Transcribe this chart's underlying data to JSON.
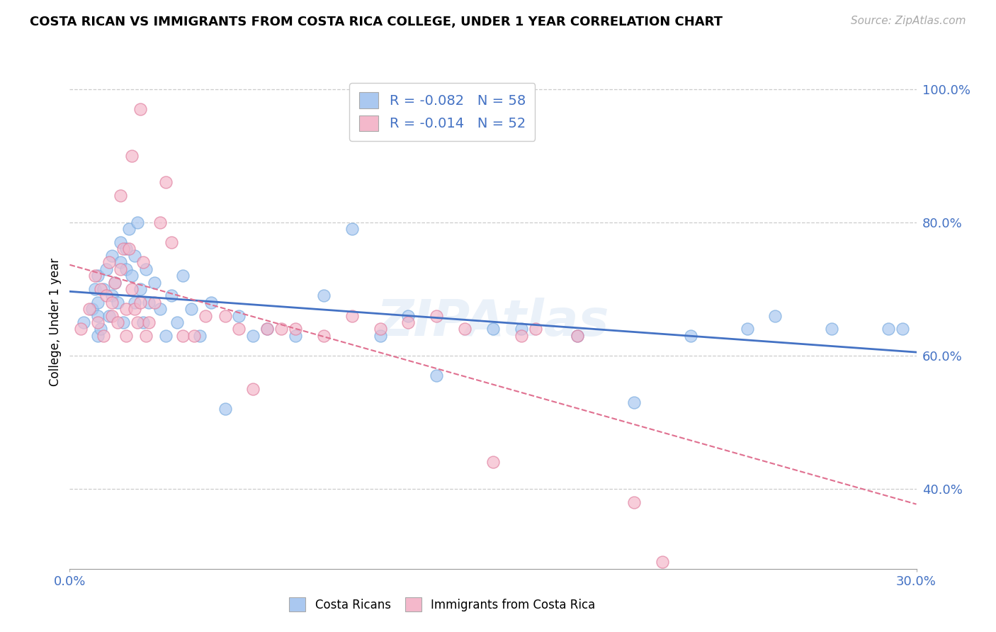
{
  "title": "COSTA RICAN VS IMMIGRANTS FROM COSTA RICA COLLEGE, UNDER 1 YEAR CORRELATION CHART",
  "source": "Source: ZipAtlas.com",
  "ylabel": "College, Under 1 year",
  "xlim": [
    0.0,
    0.3
  ],
  "ylim": [
    0.28,
    1.02
  ],
  "yticks": [
    0.4,
    0.6,
    0.8,
    1.0
  ],
  "ytick_labels": [
    "40.0%",
    "60.0%",
    "80.0%",
    "100.0%"
  ],
  "series1_name": "Costa Ricans",
  "series1_color": "#aac8f0",
  "series1_edge_color": "#7aacdf",
  "series1_line_color": "#4472c4",
  "series1_R": -0.082,
  "series1_N": 58,
  "series2_name": "Immigrants from Costa Rica",
  "series2_color": "#f4b8cb",
  "series2_edge_color": "#e080a0",
  "series2_line_color": "#e07090",
  "series2_R": -0.014,
  "series2_N": 52,
  "watermark": "ZIPAtlas",
  "blue_x": [
    0.005,
    0.008,
    0.009,
    0.01,
    0.01,
    0.01,
    0.01,
    0.011,
    0.012,
    0.013,
    0.014,
    0.015,
    0.015,
    0.016,
    0.017,
    0.018,
    0.018,
    0.019,
    0.02,
    0.02,
    0.021,
    0.022,
    0.023,
    0.023,
    0.024,
    0.025,
    0.026,
    0.027,
    0.028,
    0.03,
    0.032,
    0.034,
    0.036,
    0.038,
    0.04,
    0.043,
    0.046,
    0.05,
    0.055,
    0.06,
    0.065,
    0.07,
    0.08,
    0.09,
    0.1,
    0.11,
    0.12,
    0.13,
    0.15,
    0.16,
    0.18,
    0.2,
    0.22,
    0.24,
    0.25,
    0.27,
    0.29,
    0.295
  ],
  "blue_y": [
    0.65,
    0.67,
    0.7,
    0.63,
    0.66,
    0.68,
    0.72,
    0.64,
    0.7,
    0.73,
    0.66,
    0.69,
    0.75,
    0.71,
    0.68,
    0.74,
    0.77,
    0.65,
    0.73,
    0.76,
    0.79,
    0.72,
    0.68,
    0.75,
    0.8,
    0.7,
    0.65,
    0.73,
    0.68,
    0.71,
    0.67,
    0.63,
    0.69,
    0.65,
    0.72,
    0.67,
    0.63,
    0.68,
    0.52,
    0.66,
    0.63,
    0.64,
    0.63,
    0.69,
    0.79,
    0.63,
    0.66,
    0.57,
    0.64,
    0.64,
    0.63,
    0.53,
    0.63,
    0.64,
    0.66,
    0.64,
    0.64,
    0.64
  ],
  "pink_x": [
    0.004,
    0.007,
    0.009,
    0.01,
    0.011,
    0.012,
    0.013,
    0.014,
    0.015,
    0.015,
    0.016,
    0.017,
    0.018,
    0.019,
    0.02,
    0.02,
    0.021,
    0.022,
    0.023,
    0.024,
    0.025,
    0.026,
    0.027,
    0.028,
    0.03,
    0.032,
    0.034,
    0.036,
    0.04,
    0.044,
    0.048,
    0.055,
    0.06,
    0.065,
    0.07,
    0.075,
    0.08,
    0.09,
    0.1,
    0.11,
    0.12,
    0.13,
    0.14,
    0.15,
    0.16,
    0.18,
    0.2,
    0.025,
    0.022,
    0.018,
    0.165,
    0.21
  ],
  "pink_y": [
    0.64,
    0.67,
    0.72,
    0.65,
    0.7,
    0.63,
    0.69,
    0.74,
    0.68,
    0.66,
    0.71,
    0.65,
    0.73,
    0.76,
    0.67,
    0.63,
    0.76,
    0.7,
    0.67,
    0.65,
    0.68,
    0.74,
    0.63,
    0.65,
    0.68,
    0.8,
    0.86,
    0.77,
    0.63,
    0.63,
    0.66,
    0.66,
    0.64,
    0.55,
    0.64,
    0.64,
    0.64,
    0.63,
    0.66,
    0.64,
    0.65,
    0.66,
    0.64,
    0.44,
    0.63,
    0.63,
    0.38,
    0.97,
    0.9,
    0.84,
    0.64,
    0.29
  ]
}
